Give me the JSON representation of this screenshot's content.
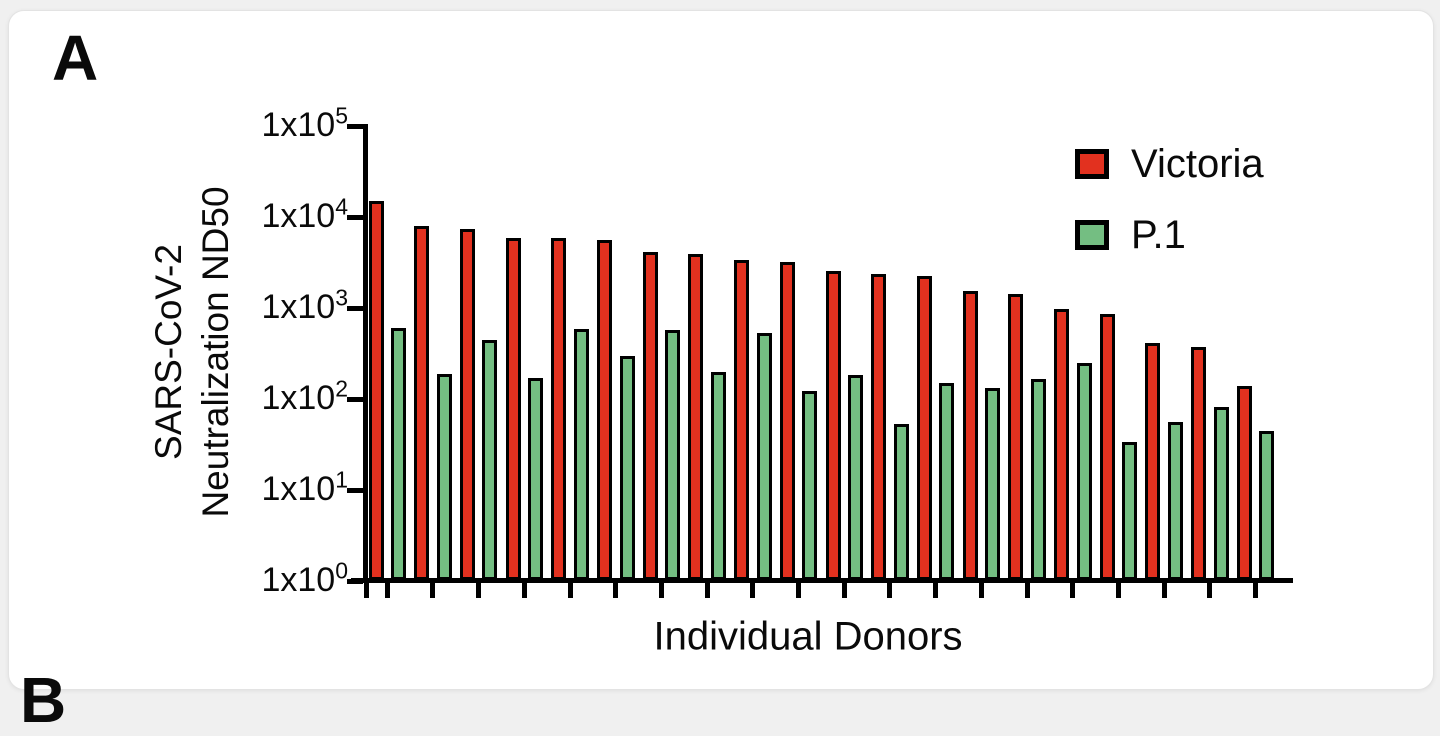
{
  "page": {
    "panel_label_a": "A",
    "panel_label_b": "B"
  },
  "chart_data": {
    "type": "bar",
    "title": "",
    "xlabel": "Individual Donors",
    "ylabel_line1": "SARS-CoV-2",
    "ylabel_line2": "Neutralization ND50",
    "yscale": "log",
    "ylim": [
      1,
      100000
    ],
    "grid": false,
    "legend_position": "top-right",
    "n_donors": 20,
    "yticks": [
      {
        "mantissa": "1x10",
        "exponent": "5",
        "value": 100000
      },
      {
        "mantissa": "1x10",
        "exponent": "4",
        "value": 10000
      },
      {
        "mantissa": "1x10",
        "exponent": "3",
        "value": 1000
      },
      {
        "mantissa": "1x10",
        "exponent": "2",
        "value": 100
      },
      {
        "mantissa": "1x10",
        "exponent": "1",
        "value": 10
      },
      {
        "mantissa": "1x10",
        "exponent": "0",
        "value": 1
      }
    ],
    "series": [
      {
        "name": "Victoria",
        "color": "#e2311f",
        "values": [
          14500,
          7800,
          7200,
          5700,
          5800,
          5500,
          4000,
          3800,
          3300,
          3100,
          2500,
          2300,
          2200,
          1500,
          1400,
          950,
          830,
          400,
          360,
          135
        ]
      },
      {
        "name": "P.1",
        "color": "#74be82",
        "values": [
          590,
          185,
          430,
          165,
          580,
          290,
          560,
          195,
          520,
          120,
          180,
          52,
          145,
          130,
          160,
          245,
          33,
          54,
          80,
          43
        ]
      }
    ]
  }
}
